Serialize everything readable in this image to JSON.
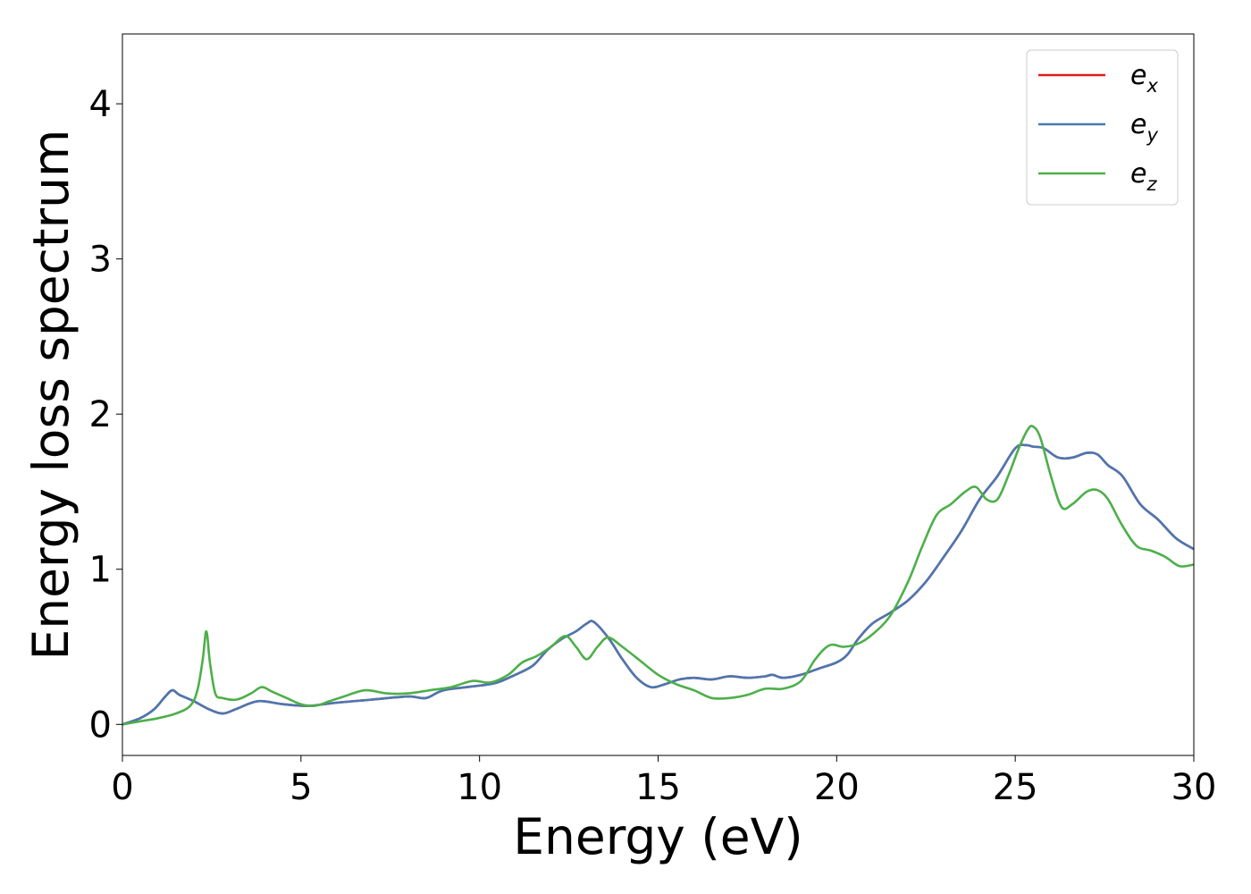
{
  "chart_data": {
    "type": "line",
    "title": "",
    "xlabel": "Energy (eV)",
    "ylabel": "Energy loss spectrum",
    "xlim": [
      0,
      30
    ],
    "ylim": [
      -0.2,
      4.45
    ],
    "xticks": [
      0,
      5,
      10,
      15,
      20,
      25,
      30
    ],
    "yticks": [
      0,
      1,
      2,
      3,
      4
    ],
    "grid": false,
    "legend_position": "top-right",
    "series": [
      {
        "name": "e_x",
        "label_base": "e",
        "label_sub": "x",
        "color": "#e41a1c",
        "x": [
          0,
          0.5,
          0.9,
          1.2,
          1.4,
          1.6,
          2.0,
          2.4,
          2.8,
          3.2,
          3.8,
          4.5,
          5.2,
          6.0,
          7.0,
          8.0,
          8.5,
          9.0,
          10.0,
          10.5,
          11.0,
          11.5,
          11.9,
          12.3,
          12.7,
          13.0,
          13.2,
          13.6,
          14.0,
          14.4,
          14.8,
          15.2,
          15.6,
          16.0,
          16.5,
          17.0,
          17.5,
          18.0,
          18.2,
          18.5,
          19.0,
          19.5,
          20.0,
          20.3,
          20.6,
          21.0,
          21.5,
          22.0,
          22.5,
          23.0,
          23.5,
          24.0,
          24.5,
          25.0,
          25.3,
          25.5,
          25.8,
          26.2,
          26.6,
          27.0,
          27.3,
          27.6,
          28.0,
          28.5,
          29.0,
          29.5,
          30.0
        ],
        "y": [
          0,
          0.04,
          0.1,
          0.18,
          0.22,
          0.19,
          0.15,
          0.1,
          0.07,
          0.1,
          0.15,
          0.13,
          0.12,
          0.14,
          0.16,
          0.18,
          0.17,
          0.22,
          0.25,
          0.27,
          0.32,
          0.38,
          0.48,
          0.55,
          0.6,
          0.65,
          0.66,
          0.56,
          0.42,
          0.3,
          0.24,
          0.26,
          0.29,
          0.3,
          0.29,
          0.31,
          0.3,
          0.31,
          0.32,
          0.3,
          0.32,
          0.36,
          0.4,
          0.45,
          0.55,
          0.65,
          0.72,
          0.8,
          0.92,
          1.08,
          1.25,
          1.45,
          1.6,
          1.78,
          1.8,
          1.79,
          1.78,
          1.72,
          1.72,
          1.75,
          1.74,
          1.67,
          1.6,
          1.42,
          1.32,
          1.2,
          1.13
        ]
      },
      {
        "name": "e_y",
        "label_base": "e",
        "label_sub": "y",
        "color": "#4a78b0",
        "x": [
          0,
          0.5,
          0.9,
          1.2,
          1.4,
          1.6,
          2.0,
          2.4,
          2.8,
          3.2,
          3.8,
          4.5,
          5.2,
          6.0,
          7.0,
          8.0,
          8.5,
          9.0,
          10.0,
          10.5,
          11.0,
          11.5,
          11.9,
          12.3,
          12.7,
          13.0,
          13.2,
          13.6,
          14.0,
          14.4,
          14.8,
          15.2,
          15.6,
          16.0,
          16.5,
          17.0,
          17.5,
          18.0,
          18.2,
          18.5,
          19.0,
          19.5,
          20.0,
          20.3,
          20.6,
          21.0,
          21.5,
          22.0,
          22.5,
          23.0,
          23.5,
          24.0,
          24.5,
          25.0,
          25.3,
          25.5,
          25.8,
          26.2,
          26.6,
          27.0,
          27.3,
          27.6,
          28.0,
          28.5,
          29.0,
          29.5,
          30.0
        ],
        "y": [
          0,
          0.04,
          0.1,
          0.18,
          0.22,
          0.19,
          0.15,
          0.1,
          0.07,
          0.1,
          0.15,
          0.13,
          0.12,
          0.14,
          0.16,
          0.18,
          0.17,
          0.22,
          0.25,
          0.27,
          0.32,
          0.38,
          0.48,
          0.55,
          0.6,
          0.65,
          0.66,
          0.56,
          0.42,
          0.3,
          0.24,
          0.26,
          0.29,
          0.3,
          0.29,
          0.31,
          0.3,
          0.31,
          0.32,
          0.3,
          0.32,
          0.36,
          0.4,
          0.45,
          0.55,
          0.65,
          0.72,
          0.8,
          0.92,
          1.08,
          1.25,
          1.45,
          1.6,
          1.78,
          1.8,
          1.79,
          1.78,
          1.72,
          1.72,
          1.75,
          1.74,
          1.67,
          1.6,
          1.42,
          1.32,
          1.2,
          1.13
        ]
      },
      {
        "name": "e_z",
        "label_base": "e",
        "label_sub": "z",
        "color": "#4daf4a",
        "x": [
          0,
          0.5,
          1.0,
          1.5,
          1.9,
          2.1,
          2.25,
          2.35,
          2.45,
          2.6,
          2.8,
          3.2,
          3.6,
          3.9,
          4.2,
          4.6,
          5.0,
          5.4,
          5.8,
          6.2,
          6.8,
          7.4,
          8.0,
          8.6,
          9.2,
          9.8,
          10.3,
          10.8,
          11.2,
          11.6,
          12.0,
          12.4,
          12.7,
          13.0,
          13.3,
          13.6,
          14.0,
          14.5,
          15.0,
          15.5,
          16.0,
          16.5,
          17.0,
          17.5,
          18.0,
          18.5,
          19.0,
          19.4,
          19.8,
          20.2,
          20.6,
          21.0,
          21.5,
          22.0,
          22.4,
          22.8,
          23.2,
          23.6,
          23.9,
          24.2,
          24.5,
          24.8,
          25.1,
          25.35,
          25.5,
          25.7,
          26.0,
          26.3,
          26.6,
          27.0,
          27.3,
          27.6,
          28.0,
          28.4,
          28.8,
          29.2,
          29.6,
          30.0
        ],
        "y": [
          0,
          0.02,
          0.04,
          0.07,
          0.12,
          0.22,
          0.42,
          0.6,
          0.4,
          0.2,
          0.17,
          0.16,
          0.2,
          0.24,
          0.21,
          0.17,
          0.13,
          0.12,
          0.15,
          0.18,
          0.22,
          0.2,
          0.2,
          0.22,
          0.24,
          0.28,
          0.27,
          0.32,
          0.4,
          0.44,
          0.5,
          0.57,
          0.5,
          0.42,
          0.5,
          0.56,
          0.5,
          0.41,
          0.32,
          0.26,
          0.22,
          0.17,
          0.17,
          0.19,
          0.23,
          0.23,
          0.28,
          0.42,
          0.51,
          0.5,
          0.52,
          0.58,
          0.7,
          0.92,
          1.15,
          1.35,
          1.42,
          1.5,
          1.53,
          1.45,
          1.45,
          1.6,
          1.78,
          1.9,
          1.92,
          1.85,
          1.6,
          1.4,
          1.42,
          1.5,
          1.51,
          1.45,
          1.28,
          1.15,
          1.12,
          1.08,
          1.02,
          1.03
        ]
      }
    ]
  }
}
